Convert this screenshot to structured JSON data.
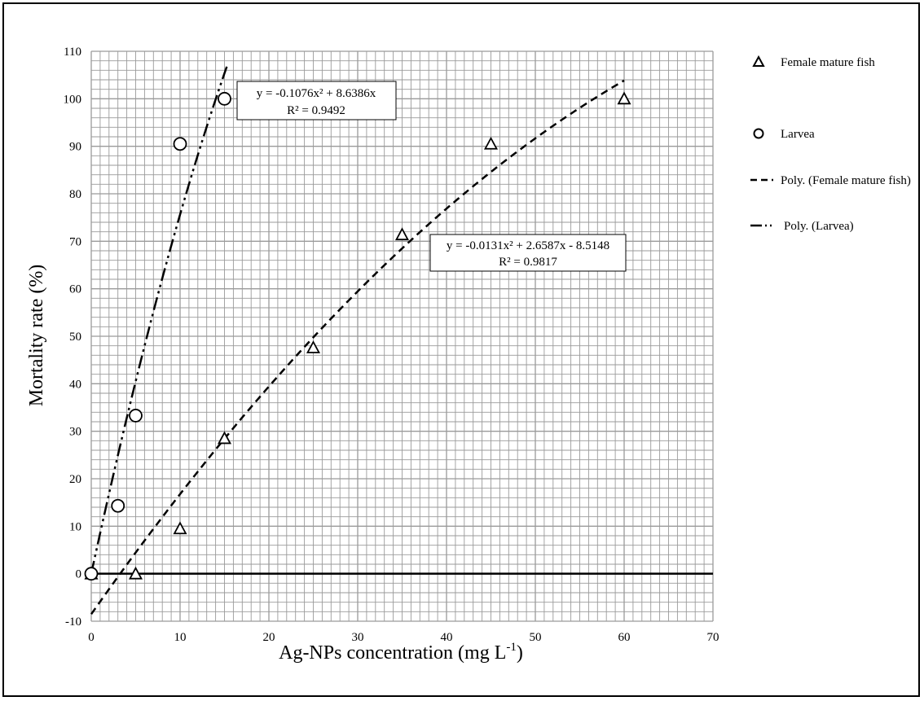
{
  "chart_data": {
    "type": "scatter",
    "xlabel": "Ag-NPs concentration (mg L",
    "xlabel_sup": "-1",
    "xlabel_tail": ")",
    "ylabel": "Mortality rate (%)",
    "xlim": [
      0,
      70
    ],
    "ylim": [
      -10,
      110
    ],
    "x_ticks": [
      "0",
      "10",
      "20",
      "30",
      "40",
      "50",
      "60",
      "70"
    ],
    "y_ticks": [
      "-10",
      "0",
      "10",
      "20",
      "30",
      "40",
      "50",
      "60",
      "70",
      "80",
      "90",
      "100",
      "110"
    ],
    "grid": true,
    "legend_position": "right",
    "series": [
      {
        "name": "Female mature fish",
        "marker": "triangle",
        "x": [
          0,
          5,
          10,
          15,
          25,
          35,
          45,
          60
        ],
        "y": [
          0,
          0,
          9.5,
          28.5,
          47.6,
          71.4,
          90.5,
          100
        ]
      },
      {
        "name": "Larvea",
        "marker": "circle",
        "x": [
          0,
          3,
          5,
          10,
          15
        ],
        "y": [
          0,
          14.3,
          33.3,
          90.5,
          100
        ]
      }
    ],
    "trendlines": [
      {
        "name": "Poly. (Female mature fish)",
        "style": "dashed",
        "coeffs": [
          -0.0131,
          2.6587,
          -8.5148
        ],
        "x_range": [
          0,
          60
        ],
        "equation": "y = -0.0131x² + 2.6587x - 8.5148",
        "r2": "R² = 0.9817"
      },
      {
        "name": "Poly. (Larvea)",
        "style": "dash-dot-dot",
        "coeffs": [
          -0.1076,
          8.6386,
          0
        ],
        "x_range": [
          0,
          15.3
        ],
        "equation": "y = -0.1076x² + 8.6386x",
        "r2": "R² = 0.9492"
      }
    ]
  }
}
